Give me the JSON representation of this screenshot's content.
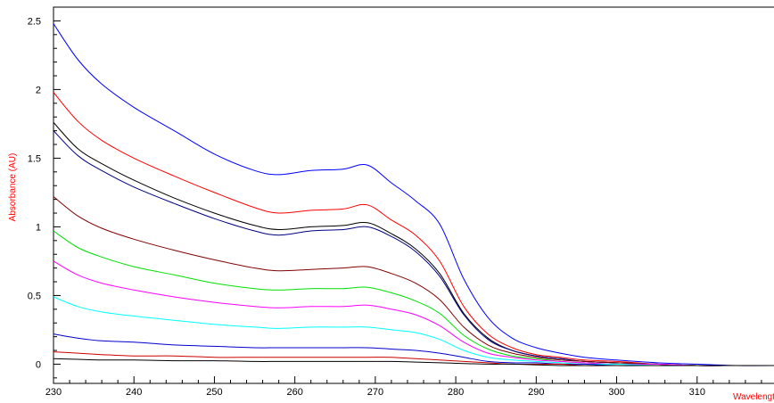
{
  "chart_data": {
    "type": "line",
    "ylabel": "Absorbance (AU)",
    "xlabel": "Wavelength (nm)",
    "xlim": [
      230,
      320
    ],
    "ylim": [
      -0.14,
      2.6
    ],
    "grid": false,
    "legend": "none",
    "label_color": "#ff0000",
    "x_tick_labels": [
      "230",
      "240",
      "250",
      "260",
      "270",
      "280",
      "290",
      "300",
      "310"
    ],
    "x_tick_values": [
      230,
      240,
      250,
      260,
      270,
      280,
      290,
      300,
      310
    ],
    "y_tick_labels": [
      "0",
      "0.5",
      "1",
      "1.5",
      "2",
      "2.5"
    ],
    "y_tick_values": [
      0,
      0.5,
      1,
      1.5,
      2,
      2.5
    ],
    "x": [
      230,
      233,
      236,
      240,
      245,
      250,
      255,
      258,
      262,
      266,
      269,
      272,
      275,
      278,
      281,
      284,
      287,
      290,
      293,
      296,
      300,
      305,
      310,
      315,
      320
    ],
    "series": [
      {
        "color": "#0000ff",
        "values": [
          2.48,
          2.22,
          2.04,
          1.87,
          1.7,
          1.53,
          1.41,
          1.38,
          1.41,
          1.42,
          1.45,
          1.32,
          1.19,
          1.02,
          0.62,
          0.34,
          0.19,
          0.12,
          0.08,
          0.05,
          0.03,
          0.01,
          0.0,
          -0.01,
          -0.01
        ]
      },
      {
        "color": "#ff0000",
        "values": [
          1.98,
          1.77,
          1.63,
          1.5,
          1.37,
          1.25,
          1.14,
          1.1,
          1.12,
          1.13,
          1.16,
          1.05,
          0.94,
          0.75,
          0.42,
          0.22,
          0.12,
          0.07,
          0.05,
          0.03,
          0.02,
          0.0,
          -0.01,
          -0.01,
          -0.01
        ]
      },
      {
        "color": "#000000",
        "values": [
          1.76,
          1.57,
          1.46,
          1.34,
          1.21,
          1.1,
          1.01,
          0.98,
          1.0,
          1.01,
          1.03,
          0.95,
          0.84,
          0.66,
          0.37,
          0.19,
          0.1,
          0.06,
          0.04,
          0.02,
          0.01,
          0.0,
          -0.01,
          -0.01,
          -0.01
        ]
      },
      {
        "color": "#000080",
        "values": [
          1.7,
          1.52,
          1.41,
          1.29,
          1.17,
          1.06,
          0.97,
          0.94,
          0.97,
          0.98,
          1.0,
          0.93,
          0.82,
          0.64,
          0.36,
          0.18,
          0.1,
          0.06,
          0.04,
          0.02,
          0.01,
          0.0,
          -0.01,
          -0.01,
          -0.01
        ]
      },
      {
        "color": "#800000",
        "values": [
          1.22,
          1.08,
          0.99,
          0.91,
          0.83,
          0.76,
          0.7,
          0.68,
          0.69,
          0.7,
          0.71,
          0.66,
          0.59,
          0.47,
          0.27,
          0.14,
          0.08,
          0.05,
          0.03,
          0.02,
          0.01,
          0.0,
          -0.01,
          -0.01,
          -0.01
        ]
      },
      {
        "color": "#00e000",
        "values": [
          0.97,
          0.85,
          0.78,
          0.71,
          0.65,
          0.59,
          0.55,
          0.54,
          0.55,
          0.55,
          0.56,
          0.52,
          0.46,
          0.37,
          0.21,
          0.11,
          0.06,
          0.04,
          0.02,
          0.01,
          0.0,
          0.0,
          -0.01,
          -0.01,
          -0.01
        ]
      },
      {
        "color": "#ff00ff",
        "values": [
          0.75,
          0.65,
          0.59,
          0.54,
          0.49,
          0.45,
          0.42,
          0.41,
          0.42,
          0.42,
          0.43,
          0.4,
          0.36,
          0.28,
          0.16,
          0.08,
          0.05,
          0.03,
          0.02,
          0.01,
          0.0,
          0.0,
          -0.01,
          -0.01,
          -0.01
        ]
      },
      {
        "color": "#00ffff",
        "values": [
          0.49,
          0.42,
          0.38,
          0.35,
          0.32,
          0.29,
          0.27,
          0.26,
          0.27,
          0.27,
          0.27,
          0.25,
          0.23,
          0.18,
          0.1,
          0.05,
          0.03,
          0.02,
          0.01,
          0.0,
          0.0,
          -0.01,
          -0.01,
          -0.01,
          -0.01
        ]
      },
      {
        "color": "#0000cc",
        "values": [
          0.22,
          0.19,
          0.17,
          0.16,
          0.14,
          0.13,
          0.12,
          0.12,
          0.12,
          0.12,
          0.12,
          0.11,
          0.1,
          0.08,
          0.05,
          0.02,
          0.01,
          0.01,
          0.0,
          0.0,
          -0.01,
          -0.01,
          -0.01,
          -0.01,
          -0.01
        ]
      },
      {
        "color": "#cc0000",
        "values": [
          0.09,
          0.08,
          0.07,
          0.06,
          0.06,
          0.05,
          0.05,
          0.05,
          0.05,
          0.05,
          0.05,
          0.05,
          0.04,
          0.03,
          0.02,
          0.01,
          0.0,
          0.0,
          0.0,
          -0.01,
          -0.01,
          -0.01,
          -0.01,
          -0.01,
          -0.01
        ]
      },
      {
        "color": "#000000",
        "values": [
          0.04,
          0.035,
          0.03,
          0.03,
          0.025,
          0.025,
          0.02,
          0.02,
          0.02,
          0.02,
          0.02,
          0.02,
          0.015,
          0.01,
          0.005,
          0.0,
          0.0,
          -0.005,
          -0.01,
          -0.01,
          -0.01,
          -0.01,
          -0.01,
          -0.01,
          -0.01
        ]
      }
    ]
  }
}
